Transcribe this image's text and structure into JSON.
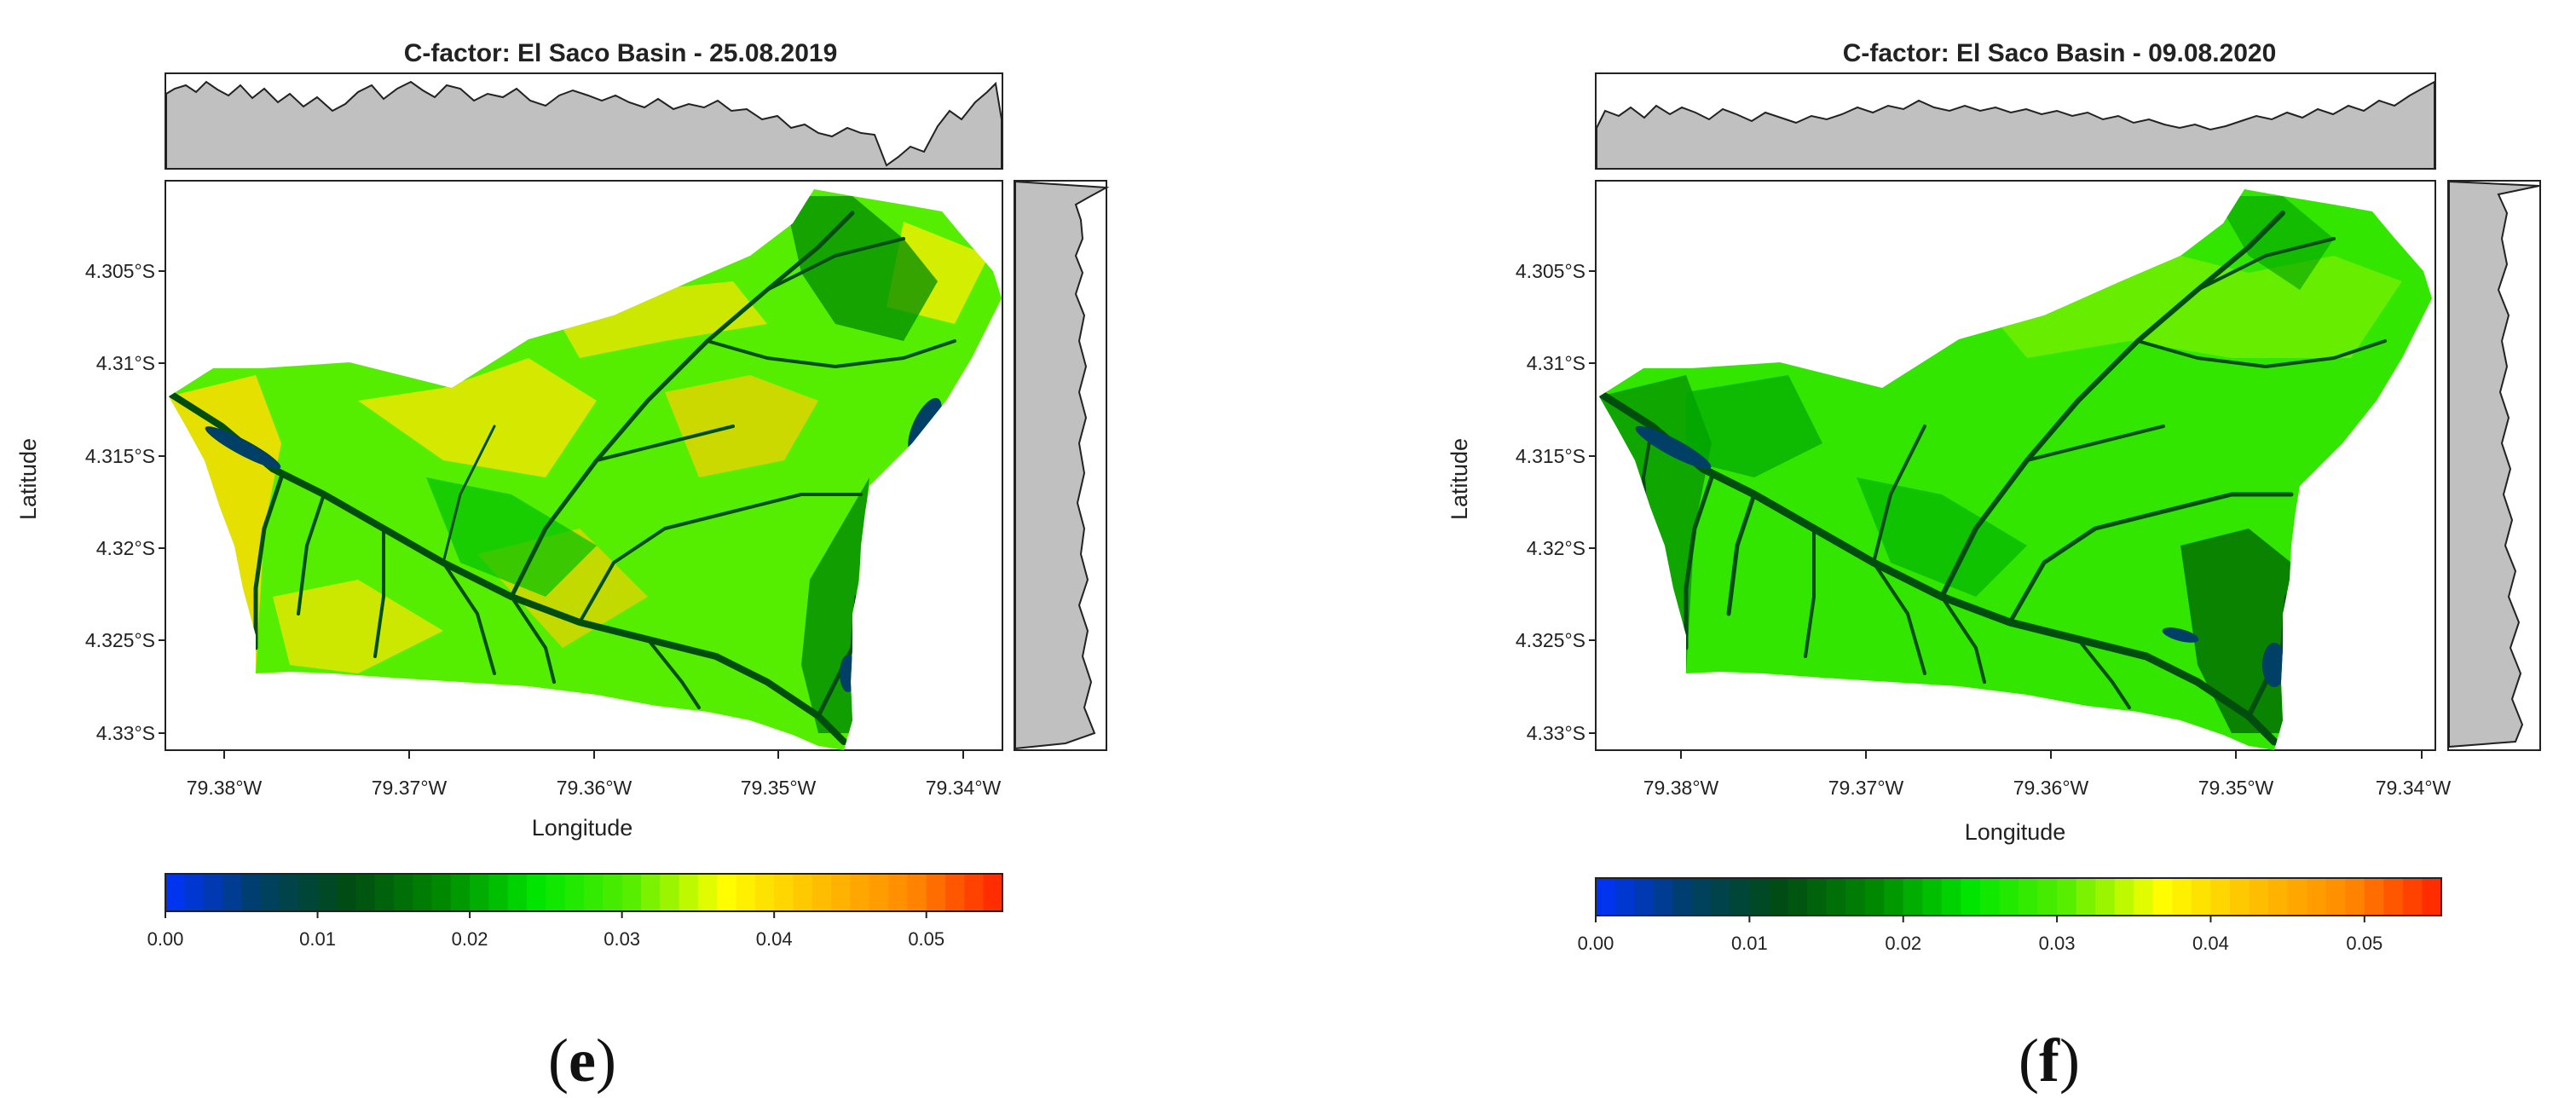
{
  "colors": {
    "scale": [
      "#0033ff",
      "#003f66",
      "#004d10",
      "#008a00",
      "#00e600",
      "#55ee00",
      "#ffff00",
      "#ffc000",
      "#ff8a00",
      "#ff2200"
    ],
    "profile_fill": "#c0c0c0",
    "frame": "#222222"
  },
  "panels": [
    {
      "title": "C-factor: El Saco Basin - 25.08.2019",
      "panel_label": "(e)",
      "panel_label_parts": {
        "open": "(",
        "letter": "e",
        "close": ")"
      },
      "xlabel": "Longitude",
      "ylabel": "Latitude",
      "x_ticks": [
        "79.38°W",
        "79.37°W",
        "79.36°W",
        "79.35°W",
        "79.34°W"
      ],
      "y_ticks": [
        "4.305°S",
        "4.31°S",
        "4.315°S",
        "4.32°S",
        "4.325°S",
        "4.33°S"
      ],
      "colorbar_ticks": [
        "0.00",
        "0.01",
        "0.02",
        "0.03",
        "0.04",
        "0.05"
      ],
      "colorbar_range": [
        0,
        0.055
      ]
    },
    {
      "title": "C-factor: El Saco Basin - 09.08.2020",
      "panel_label": "(f)",
      "panel_label_parts": {
        "open": "(",
        "letter": "f",
        "close": ")"
      },
      "xlabel": "Longitude",
      "ylabel": "Latitude",
      "x_ticks": [
        "79.38°W",
        "79.37°W",
        "79.36°W",
        "79.35°W",
        "79.34°W"
      ],
      "y_ticks": [
        "4.305°S",
        "4.31°S",
        "4.315°S",
        "4.32°S",
        "4.325°S",
        "4.33°S"
      ],
      "colorbar_ticks": [
        "0.00",
        "0.01",
        "0.02",
        "0.03",
        "0.04",
        "0.05"
      ],
      "colorbar_range": [
        0,
        0.055
      ]
    }
  ]
}
